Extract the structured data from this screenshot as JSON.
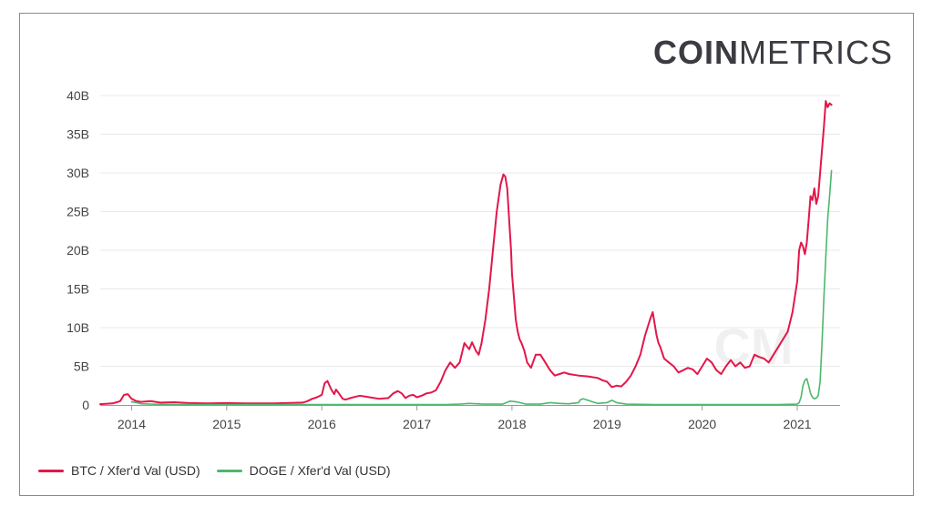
{
  "brand": {
    "bold": "COIN",
    "light": "METRICS",
    "watermark": "CM"
  },
  "colors": {
    "btc": "#e3174a",
    "doge": "#4cb86b",
    "grid": "#e8e8e8",
    "axis": "#999999",
    "logo": "#3b3b42"
  },
  "chart_data": {
    "type": "line",
    "title": "",
    "xlabel": "",
    "ylabel": "",
    "xlim": [
      2013.67,
      2021.45
    ],
    "ylim": [
      0,
      40
    ],
    "y_ticks": [
      {
        "value": 0,
        "label": "0"
      },
      {
        "value": 5,
        "label": "5B"
      },
      {
        "value": 10,
        "label": "10B"
      },
      {
        "value": 15,
        "label": "15B"
      },
      {
        "value": 20,
        "label": "20B"
      },
      {
        "value": 25,
        "label": "25B"
      },
      {
        "value": 30,
        "label": "30B"
      },
      {
        "value": 35,
        "label": "35B"
      },
      {
        "value": 40,
        "label": "40B"
      }
    ],
    "x_ticks": [
      {
        "value": 2014,
        "label": "2014"
      },
      {
        "value": 2015,
        "label": "2015"
      },
      {
        "value": 2016,
        "label": "2016"
      },
      {
        "value": 2017,
        "label": "2017"
      },
      {
        "value": 2018,
        "label": "2018"
      },
      {
        "value": 2019,
        "label": "2019"
      },
      {
        "value": 2020,
        "label": "2020"
      },
      {
        "value": 2021,
        "label": "2021"
      }
    ],
    "legend_position": "bottom-left",
    "series": [
      {
        "name": "BTC / Xfer'd Val (USD)",
        "color_key": "btc",
        "x": [
          2013.67,
          2013.8,
          2013.88,
          2013.92,
          2013.96,
          2014.0,
          2014.05,
          2014.1,
          2014.2,
          2014.3,
          2014.45,
          2014.6,
          2014.8,
          2015.0,
          2015.2,
          2015.5,
          2015.8,
          2015.85,
          2015.9,
          2015.95,
          2016.0,
          2016.03,
          2016.06,
          2016.1,
          2016.13,
          2016.15,
          2016.18,
          2016.22,
          2016.25,
          2016.3,
          2016.4,
          2016.5,
          2016.6,
          2016.7,
          2016.75,
          2016.8,
          2016.84,
          2016.88,
          2016.92,
          2016.96,
          2017.0,
          2017.05,
          2017.1,
          2017.15,
          2017.2,
          2017.25,
          2017.3,
          2017.35,
          2017.4,
          2017.45,
          2017.5,
          2017.55,
          2017.58,
          2017.62,
          2017.65,
          2017.68,
          2017.72,
          2017.76,
          2017.8,
          2017.84,
          2017.88,
          2017.91,
          2017.93,
          2017.95,
          2017.97,
          2017.99,
          2018.0,
          2018.02,
          2018.04,
          2018.06,
          2018.08,
          2018.1,
          2018.13,
          2018.16,
          2018.2,
          2018.25,
          2018.3,
          2018.35,
          2018.4,
          2018.45,
          2018.5,
          2018.55,
          2018.6,
          2018.7,
          2018.8,
          2018.9,
          2018.95,
          2019.0,
          2019.05,
          2019.1,
          2019.15,
          2019.2,
          2019.25,
          2019.3,
          2019.35,
          2019.4,
          2019.45,
          2019.48,
          2019.5,
          2019.52,
          2019.54,
          2019.56,
          2019.6,
          2019.65,
          2019.7,
          2019.75,
          2019.8,
          2019.85,
          2019.9,
          2019.95,
          2020.0,
          2020.05,
          2020.1,
          2020.15,
          2020.2,
          2020.25,
          2020.3,
          2020.35,
          2020.4,
          2020.45,
          2020.5,
          2020.55,
          2020.6,
          2020.65,
          2020.7,
          2020.75,
          2020.8,
          2020.85,
          2020.9,
          2020.95,
          2021.0,
          2021.02,
          2021.04,
          2021.06,
          2021.08,
          2021.1,
          2021.12,
          2021.14,
          2021.16,
          2021.18,
          2021.2,
          2021.22,
          2021.24,
          2021.26,
          2021.28,
          2021.3,
          2021.32,
          2021.34,
          2021.36
        ],
        "values": [
          0.1,
          0.2,
          0.5,
          1.3,
          1.4,
          0.8,
          0.5,
          0.4,
          0.5,
          0.3,
          0.35,
          0.25,
          0.2,
          0.25,
          0.2,
          0.2,
          0.3,
          0.5,
          0.8,
          1.0,
          1.3,
          2.8,
          3.1,
          2.0,
          1.4,
          2.0,
          1.5,
          0.8,
          0.7,
          0.9,
          1.2,
          1.0,
          0.8,
          0.9,
          1.5,
          1.8,
          1.5,
          0.9,
          1.2,
          1.3,
          1.0,
          1.2,
          1.5,
          1.6,
          1.9,
          3.0,
          4.5,
          5.5,
          4.8,
          5.5,
          8.0,
          7.2,
          8.1,
          7.0,
          6.5,
          8.0,
          11.0,
          15.0,
          20.0,
          25.0,
          28.5,
          29.8,
          29.5,
          28.0,
          24.0,
          20.0,
          17.0,
          14.0,
          11.0,
          9.5,
          8.5,
          8.0,
          7.0,
          5.5,
          4.8,
          6.5,
          6.5,
          5.5,
          4.5,
          3.8,
          4.0,
          4.2,
          4.0,
          3.8,
          3.7,
          3.5,
          3.2,
          3.0,
          2.3,
          2.5,
          2.4,
          3.0,
          3.8,
          5.0,
          6.5,
          9.0,
          11.0,
          12.0,
          10.5,
          9.0,
          8.0,
          7.5,
          6.0,
          5.5,
          5.0,
          4.2,
          4.5,
          4.8,
          4.6,
          4.0,
          5.0,
          6.0,
          5.5,
          4.5,
          4.0,
          5.0,
          5.8,
          5.0,
          5.5,
          4.8,
          5.0,
          6.5,
          6.2,
          6.0,
          5.5,
          6.5,
          7.5,
          8.5,
          9.5,
          12.0,
          16.0,
          20.0,
          21.0,
          20.5,
          19.5,
          21.0,
          24.0,
          27.0,
          26.5,
          28.0,
          26.0,
          27.0,
          30.0,
          33.0,
          36.0,
          39.3,
          38.5,
          39.0,
          38.8
        ]
      },
      {
        "name": "DOGE / Xfer'd Val (USD)",
        "color_key": "doge",
        "x": [
          2014.0,
          2014.05,
          2014.1,
          2014.2,
          2014.5,
          2015.0,
          2016.0,
          2017.0,
          2017.3,
          2017.45,
          2017.55,
          2017.7,
          2017.9,
          2017.98,
          2018.05,
          2018.15,
          2018.3,
          2018.4,
          2018.5,
          2018.6,
          2018.7,
          2018.72,
          2018.75,
          2018.8,
          2018.85,
          2018.9,
          2019.0,
          2019.05,
          2019.1,
          2019.2,
          2019.5,
          2020.0,
          2020.5,
          2020.8,
          2021.0,
          2021.02,
          2021.04,
          2021.06,
          2021.08,
          2021.1,
          2021.12,
          2021.14,
          2021.16,
          2021.18,
          2021.2,
          2021.22,
          2021.24,
          2021.26,
          2021.28,
          2021.3,
          2021.32,
          2021.34,
          2021.36
        ],
        "values": [
          0.4,
          0.3,
          0.15,
          0.1,
          0.05,
          0.05,
          0.05,
          0.05,
          0.05,
          0.1,
          0.2,
          0.1,
          0.1,
          0.5,
          0.4,
          0.1,
          0.1,
          0.3,
          0.2,
          0.15,
          0.3,
          0.7,
          0.8,
          0.6,
          0.4,
          0.2,
          0.3,
          0.6,
          0.3,
          0.1,
          0.05,
          0.05,
          0.05,
          0.05,
          0.1,
          0.3,
          1.0,
          2.5,
          3.2,
          3.4,
          2.5,
          1.5,
          1.0,
          0.8,
          0.9,
          1.2,
          3.0,
          8.0,
          14.0,
          19.0,
          24.0,
          27.0,
          30.3
        ]
      }
    ]
  }
}
